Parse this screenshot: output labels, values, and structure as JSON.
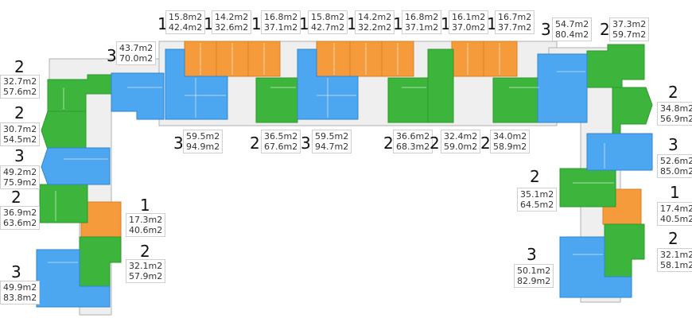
{
  "colors": {
    "one_room": "#F59B3C",
    "two_room": "#3DB53D",
    "three_room": "#4DA6F0",
    "wall": "#9a9a9a",
    "corridor": "#eeeeee"
  },
  "units": [
    {
      "id": "u1",
      "rooms": "1",
      "living": "15.8m2",
      "total": "42.4m2"
    },
    {
      "id": "u2",
      "rooms": "1",
      "living": "14.2m2",
      "total": "32.6m2"
    },
    {
      "id": "u3",
      "rooms": "1",
      "living": "16.8m2",
      "total": "37.1m2"
    },
    {
      "id": "u4",
      "rooms": "1",
      "living": "15.8m2",
      "total": "42.7m2"
    },
    {
      "id": "u5",
      "rooms": "1",
      "living": "14.2m2",
      "total": "32.2m2"
    },
    {
      "id": "u6",
      "rooms": "1",
      "living": "16.8m2",
      "total": "37.1m2"
    },
    {
      "id": "u7",
      "rooms": "1",
      "living": "16.1m2",
      "total": "37.0m2"
    },
    {
      "id": "u8",
      "rooms": "1",
      "living": "16.7m2",
      "total": "37.7m2"
    },
    {
      "id": "u9",
      "rooms": "3",
      "living": "54.7m2",
      "total": "80.4m2"
    },
    {
      "id": "u10",
      "rooms": "2",
      "living": "37.3m2",
      "total": "59.7m2"
    },
    {
      "id": "u11",
      "rooms": "3",
      "living": "43.7m2",
      "total": "70.0m2"
    },
    {
      "id": "u12",
      "rooms": "2",
      "living": "32.7m2",
      "total": "57.6m2"
    },
    {
      "id": "u13",
      "rooms": "2",
      "living": "30.7m2",
      "total": "54.5m2"
    },
    {
      "id": "u14",
      "rooms": "3",
      "living": "49.2m2",
      "total": "75.9m2"
    },
    {
      "id": "u15",
      "rooms": "2",
      "living": "36.9m2",
      "total": "63.6m2"
    },
    {
      "id": "u16",
      "rooms": "1",
      "living": "17.3m2",
      "total": "40.6m2"
    },
    {
      "id": "u17",
      "rooms": "2",
      "living": "32.1m2",
      "total": "57.9m2"
    },
    {
      "id": "u18",
      "rooms": "3",
      "living": "49.9m2",
      "total": "83.8m2"
    },
    {
      "id": "u19",
      "rooms": "3",
      "living": "59.5m2",
      "total": "94.9m2"
    },
    {
      "id": "u20",
      "rooms": "2",
      "living": "36.5m2",
      "total": "67.6m2"
    },
    {
      "id": "u21",
      "rooms": "3",
      "living": "59.5m2",
      "total": "94.7m2"
    },
    {
      "id": "u22",
      "rooms": "2",
      "living": "36.6m2",
      "total": "68.3m2"
    },
    {
      "id": "u23",
      "rooms": "2",
      "living": "32.4m2",
      "total": "59.0m2"
    },
    {
      "id": "u24",
      "rooms": "2",
      "living": "34.0m2",
      "total": "58.9m2"
    },
    {
      "id": "u25",
      "rooms": "2",
      "living": "34.8m2",
      "total": "56.9m2"
    },
    {
      "id": "u26",
      "rooms": "3",
      "living": "52.6m2",
      "total": "85.0m2"
    },
    {
      "id": "u27",
      "rooms": "2",
      "living": "35.1m2",
      "total": "64.5m2"
    },
    {
      "id": "u28",
      "rooms": "1",
      "living": "17.4m2",
      "total": "40.5m2"
    },
    {
      "id": "u29",
      "rooms": "2",
      "living": "32.1m2",
      "total": "58.1m2"
    },
    {
      "id": "u30",
      "rooms": "3",
      "living": "50.1m2",
      "total": "82.9m2"
    }
  ]
}
